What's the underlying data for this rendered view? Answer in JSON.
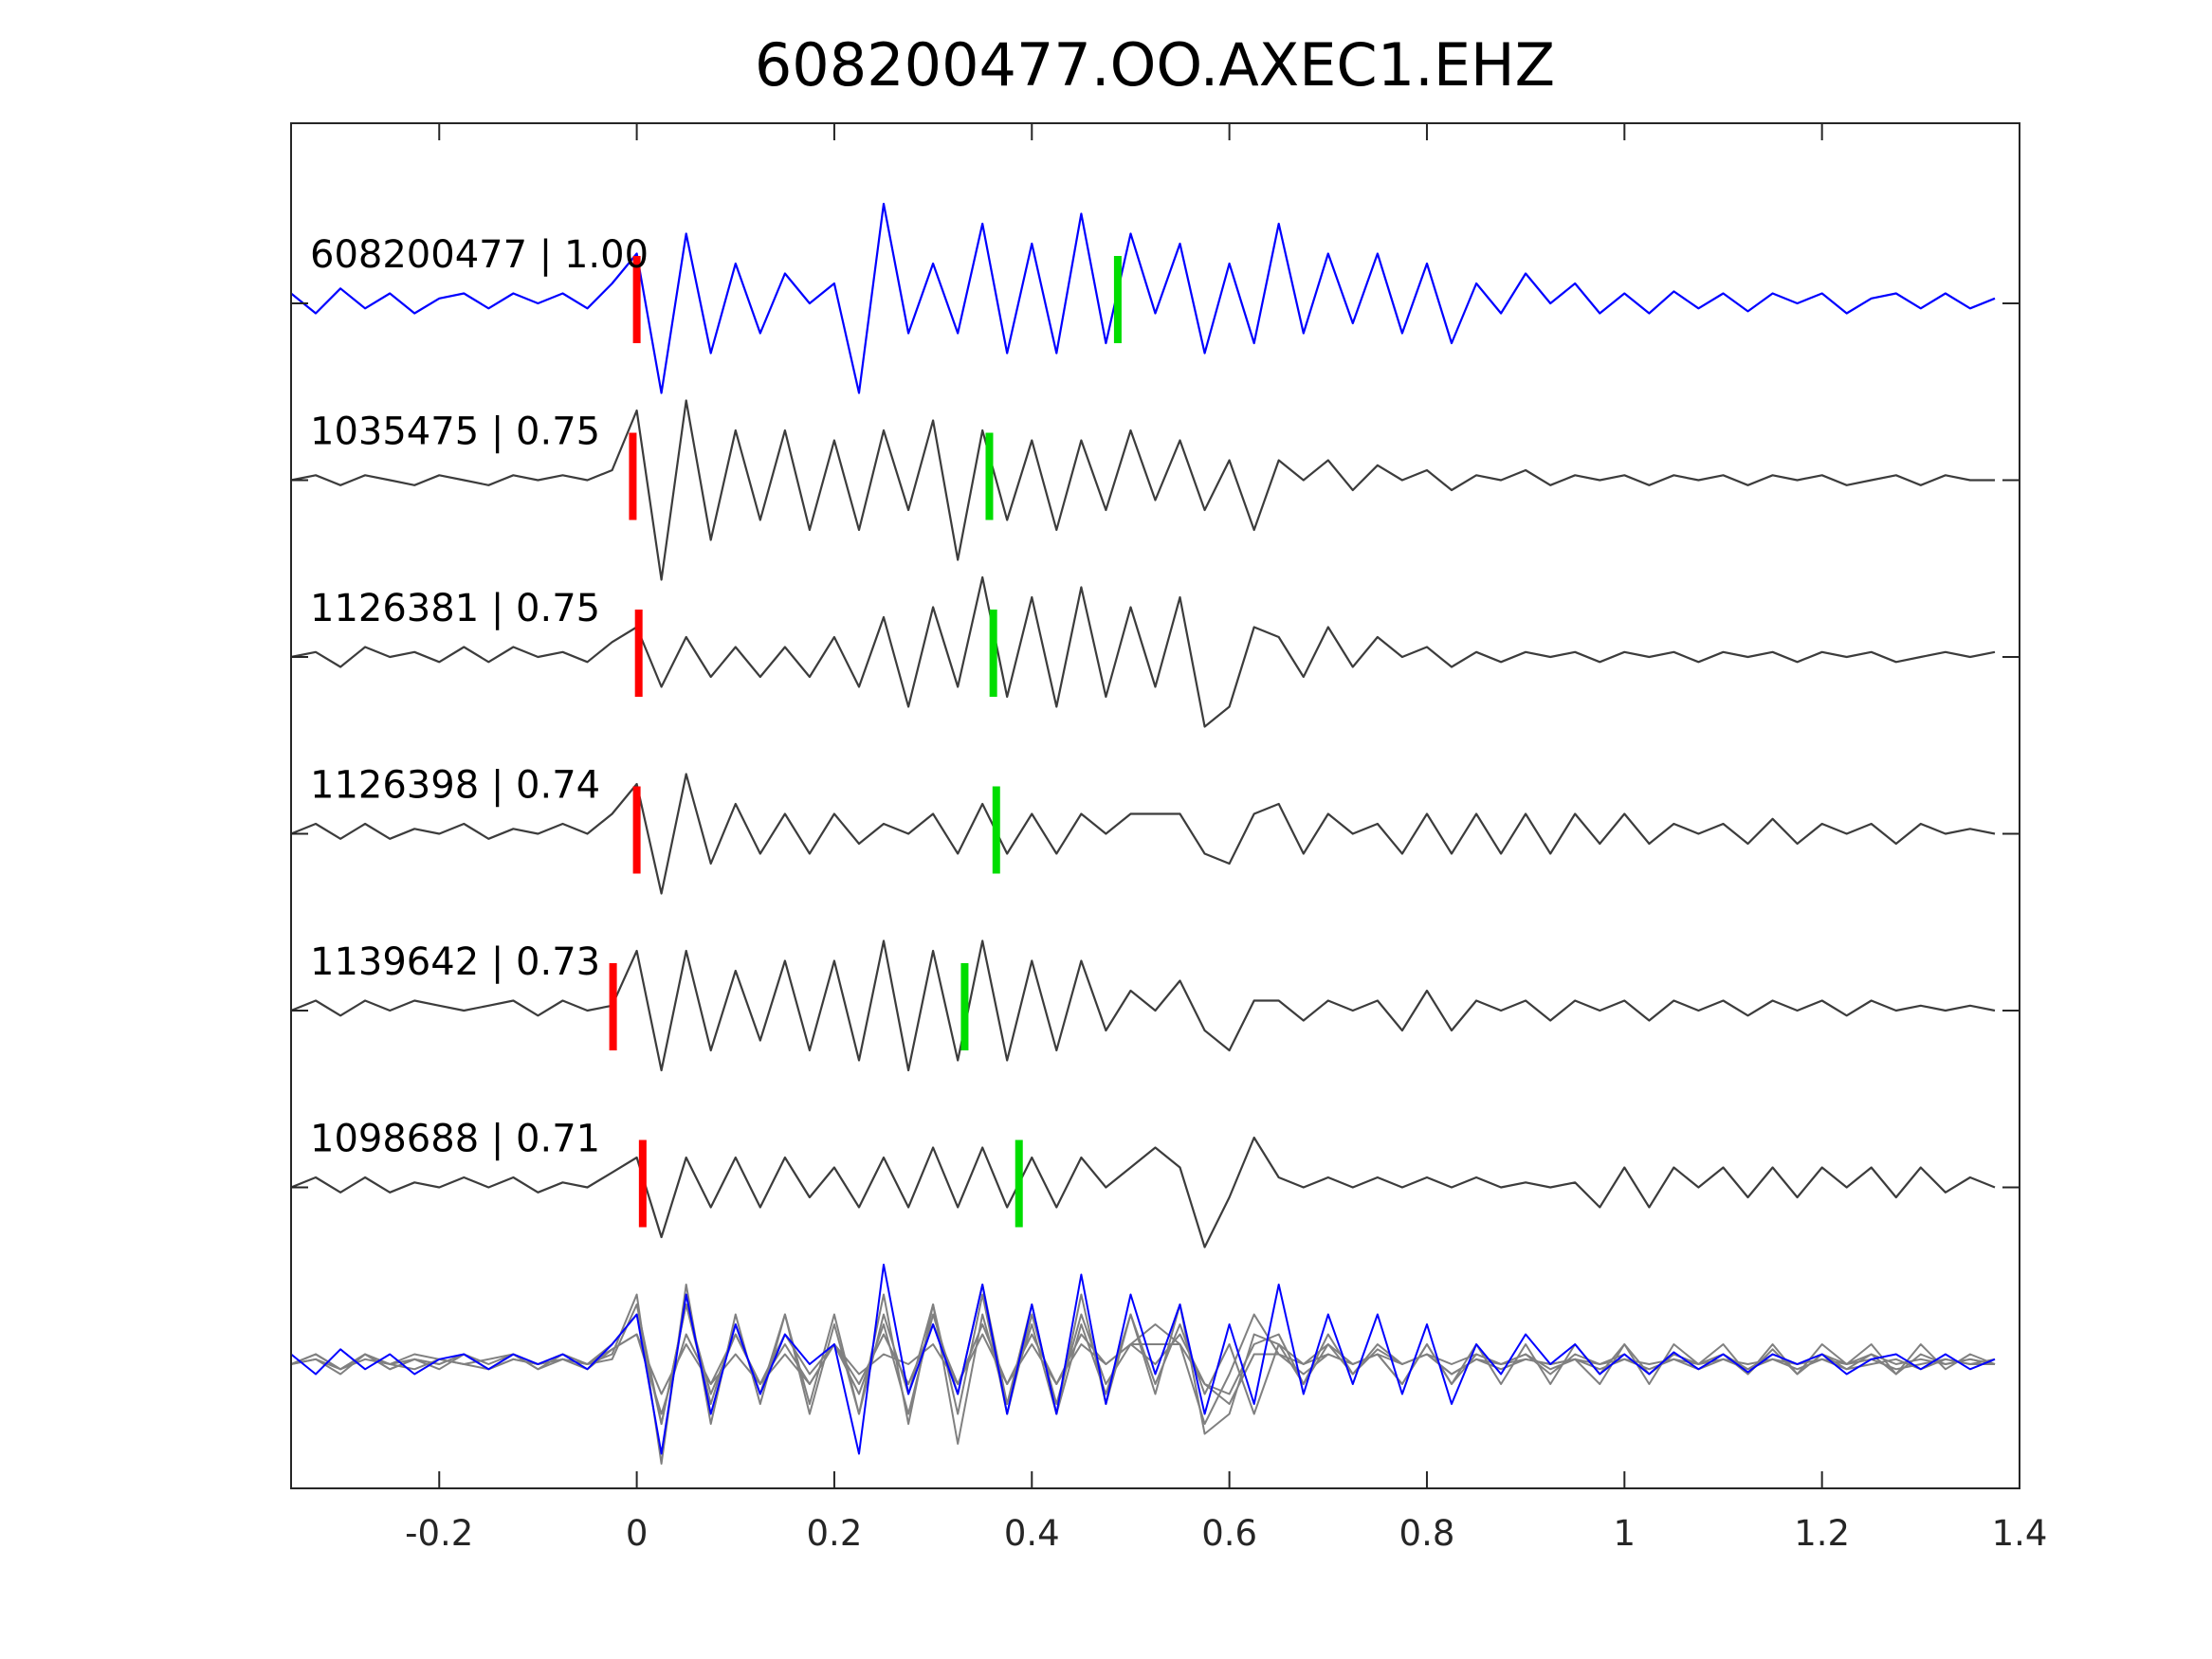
{
  "chart_data": {
    "type": "line",
    "title": "608200477.OO.AXEC1.EHZ",
    "xlabel": "",
    "ylabel": "",
    "xlim": [
      -0.35,
      1.4
    ],
    "x_ticks": [
      -0.2,
      0,
      0.2,
      0.4,
      0.6,
      0.8,
      1,
      1.2,
      1.4
    ],
    "x_tick_labels": [
      "-0.2",
      "0",
      "0.2",
      "0.4",
      "0.6",
      "0.8",
      "1",
      "1.2",
      "1.4"
    ],
    "grid": false,
    "x_start": -0.35,
    "x_step": 0.025,
    "colors": {
      "reference": "#0000ff",
      "trace": "#3c3c3c",
      "stack": "#808080",
      "pick_red": "#ff0000",
      "pick_green": "#00dd00"
    },
    "series": [
      {
        "name": "608200477",
        "label": "608200477 | 1.00",
        "color": "#0000ff",
        "red_pick": 0.0,
        "green_pick": 0.487,
        "values": [
          0.1,
          -0.1,
          0.15,
          -0.05,
          0.1,
          -0.1,
          0.05,
          0.1,
          -0.05,
          0.1,
          0,
          0.1,
          -0.05,
          0.2,
          0.5,
          -0.9,
          0.7,
          -0.5,
          0.4,
          -0.3,
          0.3,
          0.0,
          0.2,
          -0.9,
          1.0,
          -0.3,
          0.4,
          -0.3,
          0.8,
          -0.5,
          0.6,
          -0.5,
          0.9,
          -0.4,
          0.7,
          -0.1,
          0.6,
          -0.5,
          0.4,
          -0.4,
          0.8,
          -0.3,
          0.5,
          -0.2,
          0.5,
          -0.3,
          0.4,
          -0.4,
          0.2,
          -0.1,
          0.3,
          0.0,
          0.2,
          -0.1,
          0.1,
          -0.1,
          0.12,
          -0.05,
          0.1,
          -0.08,
          0.1,
          0.0,
          0.1,
          -0.1,
          0.05,
          0.1,
          -0.05,
          0.1,
          -0.05,
          0.05
        ]
      },
      {
        "name": "1035475",
        "label": "1035475 | 0.75",
        "color": "#3c3c3c",
        "red_pick": -0.004,
        "green_pick": 0.357,
        "values": [
          0.0,
          0.05,
          -0.05,
          0.05,
          0.0,
          -0.05,
          0.05,
          0.0,
          -0.05,
          0.05,
          0.0,
          0.05,
          0.0,
          0.1,
          0.7,
          -1.0,
          0.8,
          -0.6,
          0.5,
          -0.4,
          0.5,
          -0.5,
          0.4,
          -0.5,
          0.5,
          -0.3,
          0.6,
          -0.8,
          0.5,
          -0.4,
          0.4,
          -0.5,
          0.4,
          -0.3,
          0.5,
          -0.2,
          0.4,
          -0.3,
          0.2,
          -0.5,
          0.2,
          0.0,
          0.2,
          -0.1,
          0.15,
          0.0,
          0.1,
          -0.1,
          0.05,
          0.0,
          0.1,
          -0.05,
          0.05,
          0.0,
          0.05,
          -0.05,
          0.05,
          0.0,
          0.05,
          -0.05,
          0.05,
          0.0,
          0.05,
          -0.05,
          0.0,
          0.05,
          -0.05,
          0.05,
          0.0,
          0.0
        ]
      },
      {
        "name": "1126381",
        "label": "1126381 | 0.75",
        "color": "#3c3c3c",
        "red_pick": 0.002,
        "green_pick": 0.361,
        "values": [
          0.0,
          0.05,
          -0.1,
          0.1,
          0.0,
          0.05,
          -0.05,
          0.1,
          -0.05,
          0.1,
          0.0,
          0.05,
          -0.05,
          0.15,
          0.3,
          -0.3,
          0.2,
          -0.2,
          0.1,
          -0.2,
          0.1,
          -0.2,
          0.2,
          -0.3,
          0.4,
          -0.5,
          0.5,
          -0.3,
          0.8,
          -0.4,
          0.6,
          -0.5,
          0.7,
          -0.4,
          0.5,
          -0.3,
          0.6,
          -0.7,
          -0.5,
          0.3,
          0.2,
          -0.2,
          0.3,
          -0.1,
          0.2,
          0.0,
          0.1,
          -0.1,
          0.05,
          -0.05,
          0.05,
          0.0,
          0.05,
          -0.05,
          0.05,
          0.0,
          0.05,
          -0.05,
          0.05,
          0.0,
          0.05,
          -0.05,
          0.05,
          0.0,
          0.05,
          -0.05,
          0.0,
          0.05,
          0.0,
          0.05
        ]
      },
      {
        "name": "1126398",
        "label": "1126398 | 0.74",
        "color": "#3c3c3c",
        "red_pick": 0.0,
        "green_pick": 0.364,
        "values": [
          0.0,
          0.1,
          -0.05,
          0.1,
          -0.05,
          0.05,
          0.0,
          0.1,
          -0.05,
          0.05,
          0.0,
          0.1,
          0.0,
          0.2,
          0.5,
          -0.6,
          0.6,
          -0.3,
          0.3,
          -0.2,
          0.2,
          -0.2,
          0.2,
          -0.1,
          0.1,
          0.0,
          0.2,
          -0.2,
          0.3,
          -0.2,
          0.2,
          -0.2,
          0.2,
          0.0,
          0.2,
          0.2,
          0.2,
          -0.2,
          -0.3,
          0.2,
          0.3,
          -0.2,
          0.2,
          0.0,
          0.1,
          -0.2,
          0.2,
          -0.2,
          0.2,
          -0.2,
          0.2,
          -0.2,
          0.2,
          -0.1,
          0.2,
          -0.1,
          0.1,
          0.0,
          0.1,
          -0.1,
          0.15,
          -0.1,
          0.1,
          0.0,
          0.1,
          -0.1,
          0.1,
          0.0,
          0.05,
          0.0
        ]
      },
      {
        "name": "1139642",
        "label": "1139642 | 0.73",
        "color": "#3c3c3c",
        "red_pick": -0.024,
        "green_pick": 0.332,
        "values": [
          0.0,
          0.1,
          -0.05,
          0.1,
          0.0,
          0.1,
          0.05,
          0.0,
          0.05,
          0.1,
          -0.05,
          0.1,
          0.0,
          0.05,
          0.6,
          -0.6,
          0.6,
          -0.4,
          0.4,
          -0.3,
          0.5,
          -0.4,
          0.5,
          -0.5,
          0.7,
          -0.6,
          0.6,
          -0.5,
          0.7,
          -0.5,
          0.5,
          -0.4,
          0.5,
          -0.2,
          0.2,
          0.0,
          0.3,
          -0.2,
          -0.4,
          0.1,
          0.1,
          -0.1,
          0.1,
          0.0,
          0.1,
          -0.2,
          0.2,
          -0.2,
          0.1,
          0.0,
          0.1,
          -0.1,
          0.1,
          0.0,
          0.1,
          -0.1,
          0.1,
          0.0,
          0.1,
          -0.05,
          0.1,
          0.0,
          0.1,
          -0.05,
          0.1,
          0.0,
          0.05,
          0.0,
          0.05,
          0.0
        ]
      },
      {
        "name": "1098688",
        "label": "1098688 | 0.71",
        "color": "#3c3c3c",
        "red_pick": 0.006,
        "green_pick": 0.387,
        "values": [
          0.0,
          0.1,
          -0.05,
          0.1,
          -0.05,
          0.05,
          0.0,
          0.1,
          0.0,
          0.1,
          -0.05,
          0.05,
          0.0,
          0.15,
          0.3,
          -0.5,
          0.3,
          -0.2,
          0.3,
          -0.2,
          0.3,
          -0.1,
          0.2,
          -0.2,
          0.3,
          -0.2,
          0.4,
          -0.2,
          0.4,
          -0.2,
          0.3,
          -0.2,
          0.3,
          0.0,
          0.2,
          0.4,
          0.2,
          -0.6,
          -0.1,
          0.5,
          0.1,
          0.0,
          0.1,
          0.0,
          0.1,
          0.0,
          0.1,
          0.0,
          0.1,
          0.0,
          0.05,
          0.0,
          0.05,
          -0.2,
          0.2,
          -0.2,
          0.2,
          0.0,
          0.2,
          -0.1,
          0.2,
          -0.1,
          0.2,
          0.0,
          0.2,
          -0.1,
          0.2,
          -0.05,
          0.1,
          0.0
        ]
      }
    ],
    "stack": {
      "description": "overlay",
      "series_order": [
        1,
        2,
        3,
        4,
        5,
        0
      ]
    }
  }
}
